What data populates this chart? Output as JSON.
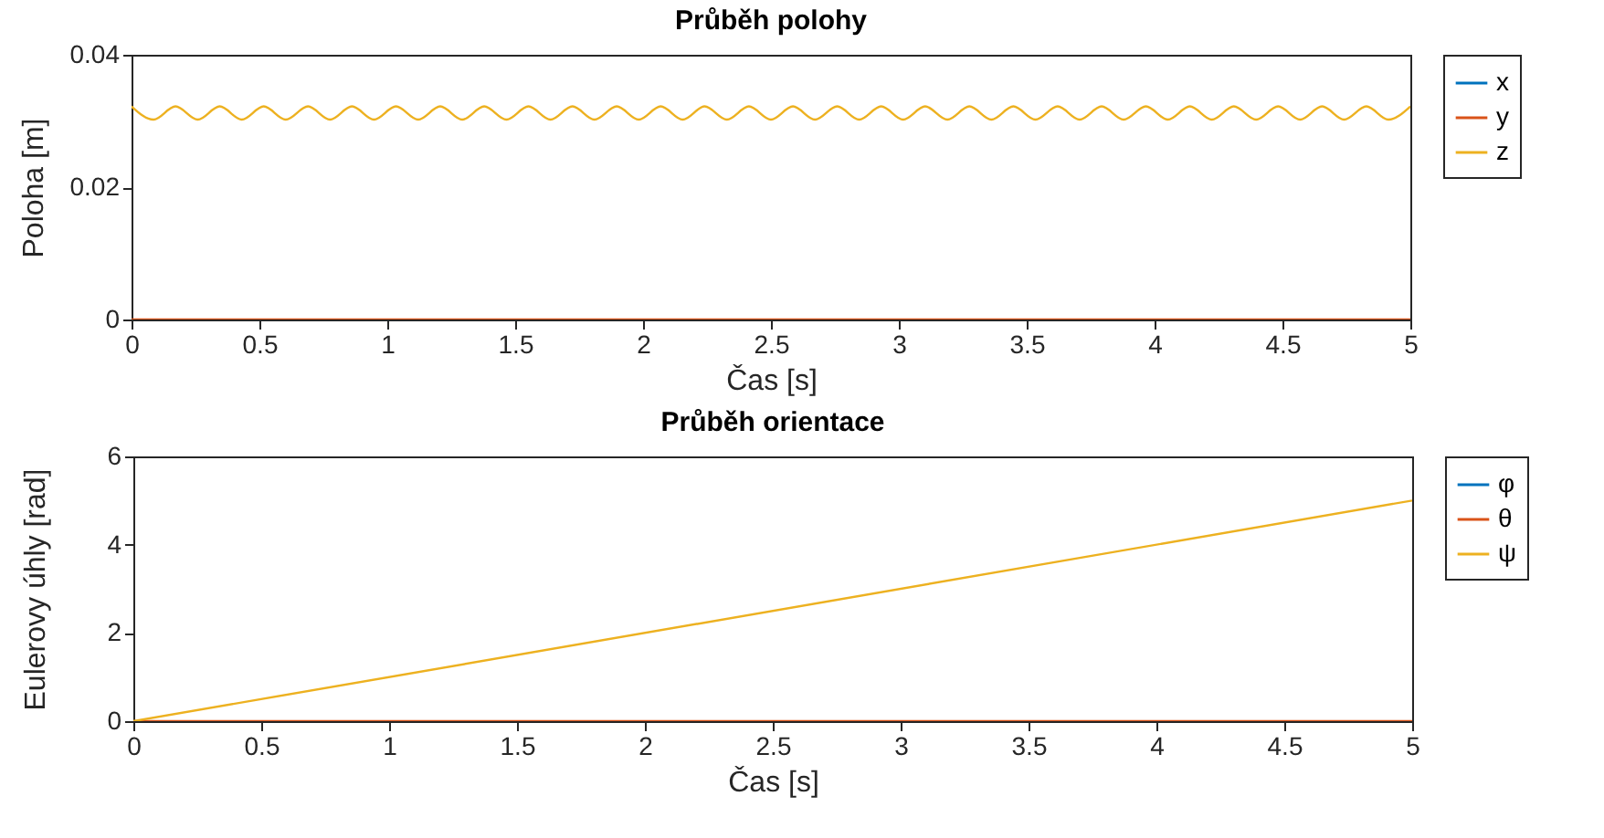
{
  "chart_data": [
    {
      "type": "line",
      "title": "Průběh polohy",
      "xlabel": "Čas [s]",
      "ylabel": "Poloha [m]",
      "xlim": [
        0,
        5
      ],
      "xticks": [
        0,
        0.5,
        1,
        1.5,
        2,
        2.5,
        3,
        3.5,
        4,
        4.5,
        5
      ],
      "ylim": [
        0,
        0.04
      ],
      "yticks": [
        0,
        0.02,
        0.04
      ],
      "grid": false,
      "legend": "right",
      "series": [
        {
          "name": "x",
          "color": "#0072bd",
          "values": [
            null,
            null
          ]
        },
        {
          "name": "y",
          "color": "#d95319",
          "x": [
            0,
            5
          ],
          "values": [
            0,
            0
          ]
        },
        {
          "name": "z",
          "color": "#edb120",
          "x": [
            0,
            0.086,
            0.172,
            0.259,
            0.345,
            0.431,
            0.517,
            0.603,
            0.69,
            0.776,
            0.862,
            0.948,
            1.034,
            1.121,
            1.207,
            1.293,
            1.379,
            1.466,
            1.552,
            1.638,
            1.724,
            1.81,
            1.897,
            1.983,
            2.069,
            2.155,
            2.241,
            2.328,
            2.414,
            2.5,
            2.586,
            2.672,
            2.759,
            2.845,
            2.931,
            3.017,
            3.103,
            3.19,
            3.276,
            3.362,
            3.448,
            3.534,
            3.621,
            3.707,
            3.793,
            3.879,
            3.966,
            4.052,
            4.138,
            4.224,
            4.31,
            4.397,
            4.483,
            4.569,
            4.655,
            4.741,
            4.828,
            4.914,
            5
          ],
          "values": [
            0.0322,
            0.0302,
            0.0322,
            0.0302,
            0.0322,
            0.0302,
            0.0322,
            0.0302,
            0.0322,
            0.0302,
            0.0322,
            0.0302,
            0.0322,
            0.0302,
            0.0322,
            0.0302,
            0.0322,
            0.0302,
            0.0322,
            0.0302,
            0.0322,
            0.0302,
            0.0322,
            0.0302,
            0.0322,
            0.0302,
            0.0322,
            0.0302,
            0.0322,
            0.0302,
            0.0322,
            0.0302,
            0.0322,
            0.0302,
            0.0322,
            0.0302,
            0.0322,
            0.0302,
            0.0322,
            0.0302,
            0.0322,
            0.0302,
            0.0322,
            0.0302,
            0.0322,
            0.0302,
            0.0322,
            0.0302,
            0.0322,
            0.0302,
            0.0322,
            0.0302,
            0.0322,
            0.0302,
            0.0322,
            0.0302,
            0.0322,
            0.0302,
            0.0322
          ]
        }
      ]
    },
    {
      "type": "line",
      "title": "Průběh orientace",
      "xlabel": "Čas [s]",
      "ylabel": "Eulerovy úhly [rad]",
      "xlim": [
        0,
        5
      ],
      "xticks": [
        0,
        0.5,
        1,
        1.5,
        2,
        2.5,
        3,
        3.5,
        4,
        4.5,
        5
      ],
      "ylim": [
        0,
        6
      ],
      "yticks": [
        0,
        2,
        4,
        6
      ],
      "grid": false,
      "legend": "right",
      "series": [
        {
          "name": "φ",
          "color": "#0072bd",
          "values": [
            null,
            null
          ]
        },
        {
          "name": "θ",
          "color": "#d95319",
          "x": [
            0,
            5
          ],
          "values": [
            0,
            0
          ]
        },
        {
          "name": "ψ",
          "color": "#edb120",
          "x": [
            0,
            5
          ],
          "values": [
            0,
            5
          ]
        }
      ]
    }
  ]
}
